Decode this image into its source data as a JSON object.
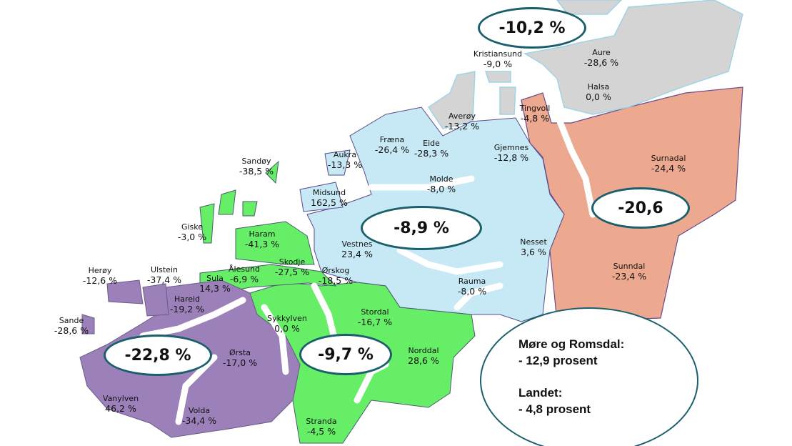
{
  "colors": {
    "group_southwest": "#9c80b9",
    "group_sunnmore": "#66ee66",
    "group_romsdal": "#c6e9f5",
    "group_nordmore_coast": "#d4d4d4",
    "group_nordmore_inland": "#eca98f",
    "oval_border": "#1b5f6c"
  },
  "municipalities": [
    {
      "name": "Kristiansund",
      "value": "-9,0 %",
      "group": "nordmore_coast"
    },
    {
      "name": "Aure",
      "value": "-28,6 %",
      "group": "nordmore_coast"
    },
    {
      "name": "Halsa",
      "value": "0,0 %",
      "group": "nordmore_coast"
    },
    {
      "name": "Averøy",
      "value": "-13,2 %",
      "group": "nordmore_coast"
    },
    {
      "name": "Tingvoll",
      "value": "-4,8 %",
      "group": "nordmore_inland"
    },
    {
      "name": "Fræna",
      "value": "-26,4 %",
      "group": "romsdal"
    },
    {
      "name": "Eide",
      "value": "-28,3 %",
      "group": "romsdal"
    },
    {
      "name": "Gjemnes",
      "value": "-12,8 %",
      "group": "romsdal"
    },
    {
      "name": "Aukra",
      "value": "-13,3 %",
      "group": "romsdal"
    },
    {
      "name": "Sandøy",
      "value": "-38,5 %",
      "group": "sunnmore"
    },
    {
      "name": "Surnadal",
      "value": "-24,4 %",
      "group": "nordmore_inland"
    },
    {
      "name": "Molde",
      "value": "-8,0 %",
      "group": "romsdal"
    },
    {
      "name": "Midsund",
      "value": "162,5 %",
      "group": "romsdal"
    },
    {
      "name": "Giske",
      "value": "-3,0 %",
      "group": "sunnmore"
    },
    {
      "name": "Haram",
      "value": "-41,3 %",
      "group": "sunnmore"
    },
    {
      "name": "Vestnes",
      "value": "23,4 %",
      "group": "romsdal"
    },
    {
      "name": "Nesset",
      "value": "3,6 %",
      "group": "romsdal"
    },
    {
      "name": "Sunndal",
      "value": "-23,4 %",
      "group": "nordmore_inland"
    },
    {
      "name": "Herøy",
      "value": "-12,6 %",
      "group": "southwest"
    },
    {
      "name": "Ulstein",
      "value": "-37,4 %",
      "group": "southwest"
    },
    {
      "name": "Ålesund",
      "value": "-6,9 %",
      "group": "sunnmore"
    },
    {
      "name": "Skodje",
      "value": "-27,5 %",
      "group": "sunnmore"
    },
    {
      "name": "Ørskog",
      "value": "-18,5 %",
      "group": "sunnmore"
    },
    {
      "name": "Sula",
      "value": "14,3 %",
      "group": "sunnmore"
    },
    {
      "name": "Rauma",
      "value": "-8,0 %",
      "group": "romsdal"
    },
    {
      "name": "Hareid",
      "value": "-19,2 %",
      "group": "southwest"
    },
    {
      "name": "Stordal",
      "value": "-16,7 %",
      "group": "sunnmore"
    },
    {
      "name": "Sande",
      "value": "-28,6 %",
      "group": "southwest"
    },
    {
      "name": "Sykkylven",
      "value": "0,0 %",
      "group": "sunnmore"
    },
    {
      "name": "Ørsta",
      "value": "-17,0 %",
      "group": "southwest"
    },
    {
      "name": "Norddal",
      "value": "28,6 %",
      "group": "sunnmore"
    },
    {
      "name": "Vanylven",
      "value": "46,2 %",
      "group": "southwest"
    },
    {
      "name": "Volda",
      "value": "-34,4 %",
      "group": "southwest"
    },
    {
      "name": "Stranda",
      "value": "-4,5 %",
      "group": "sunnmore"
    }
  ],
  "region_totals": {
    "nordmore_coast": "-10,2 %",
    "nordmore_inland": "-20,6",
    "romsdal": "-8,9 %",
    "southwest": "-22,8 %",
    "sunnmore": "-9,7 %"
  },
  "summary": {
    "county_label": "Møre og Romsdal:",
    "county_value": "- 12,9 prosent",
    "country_label": "Landet:",
    "country_value": "- 4,8 prosent"
  }
}
